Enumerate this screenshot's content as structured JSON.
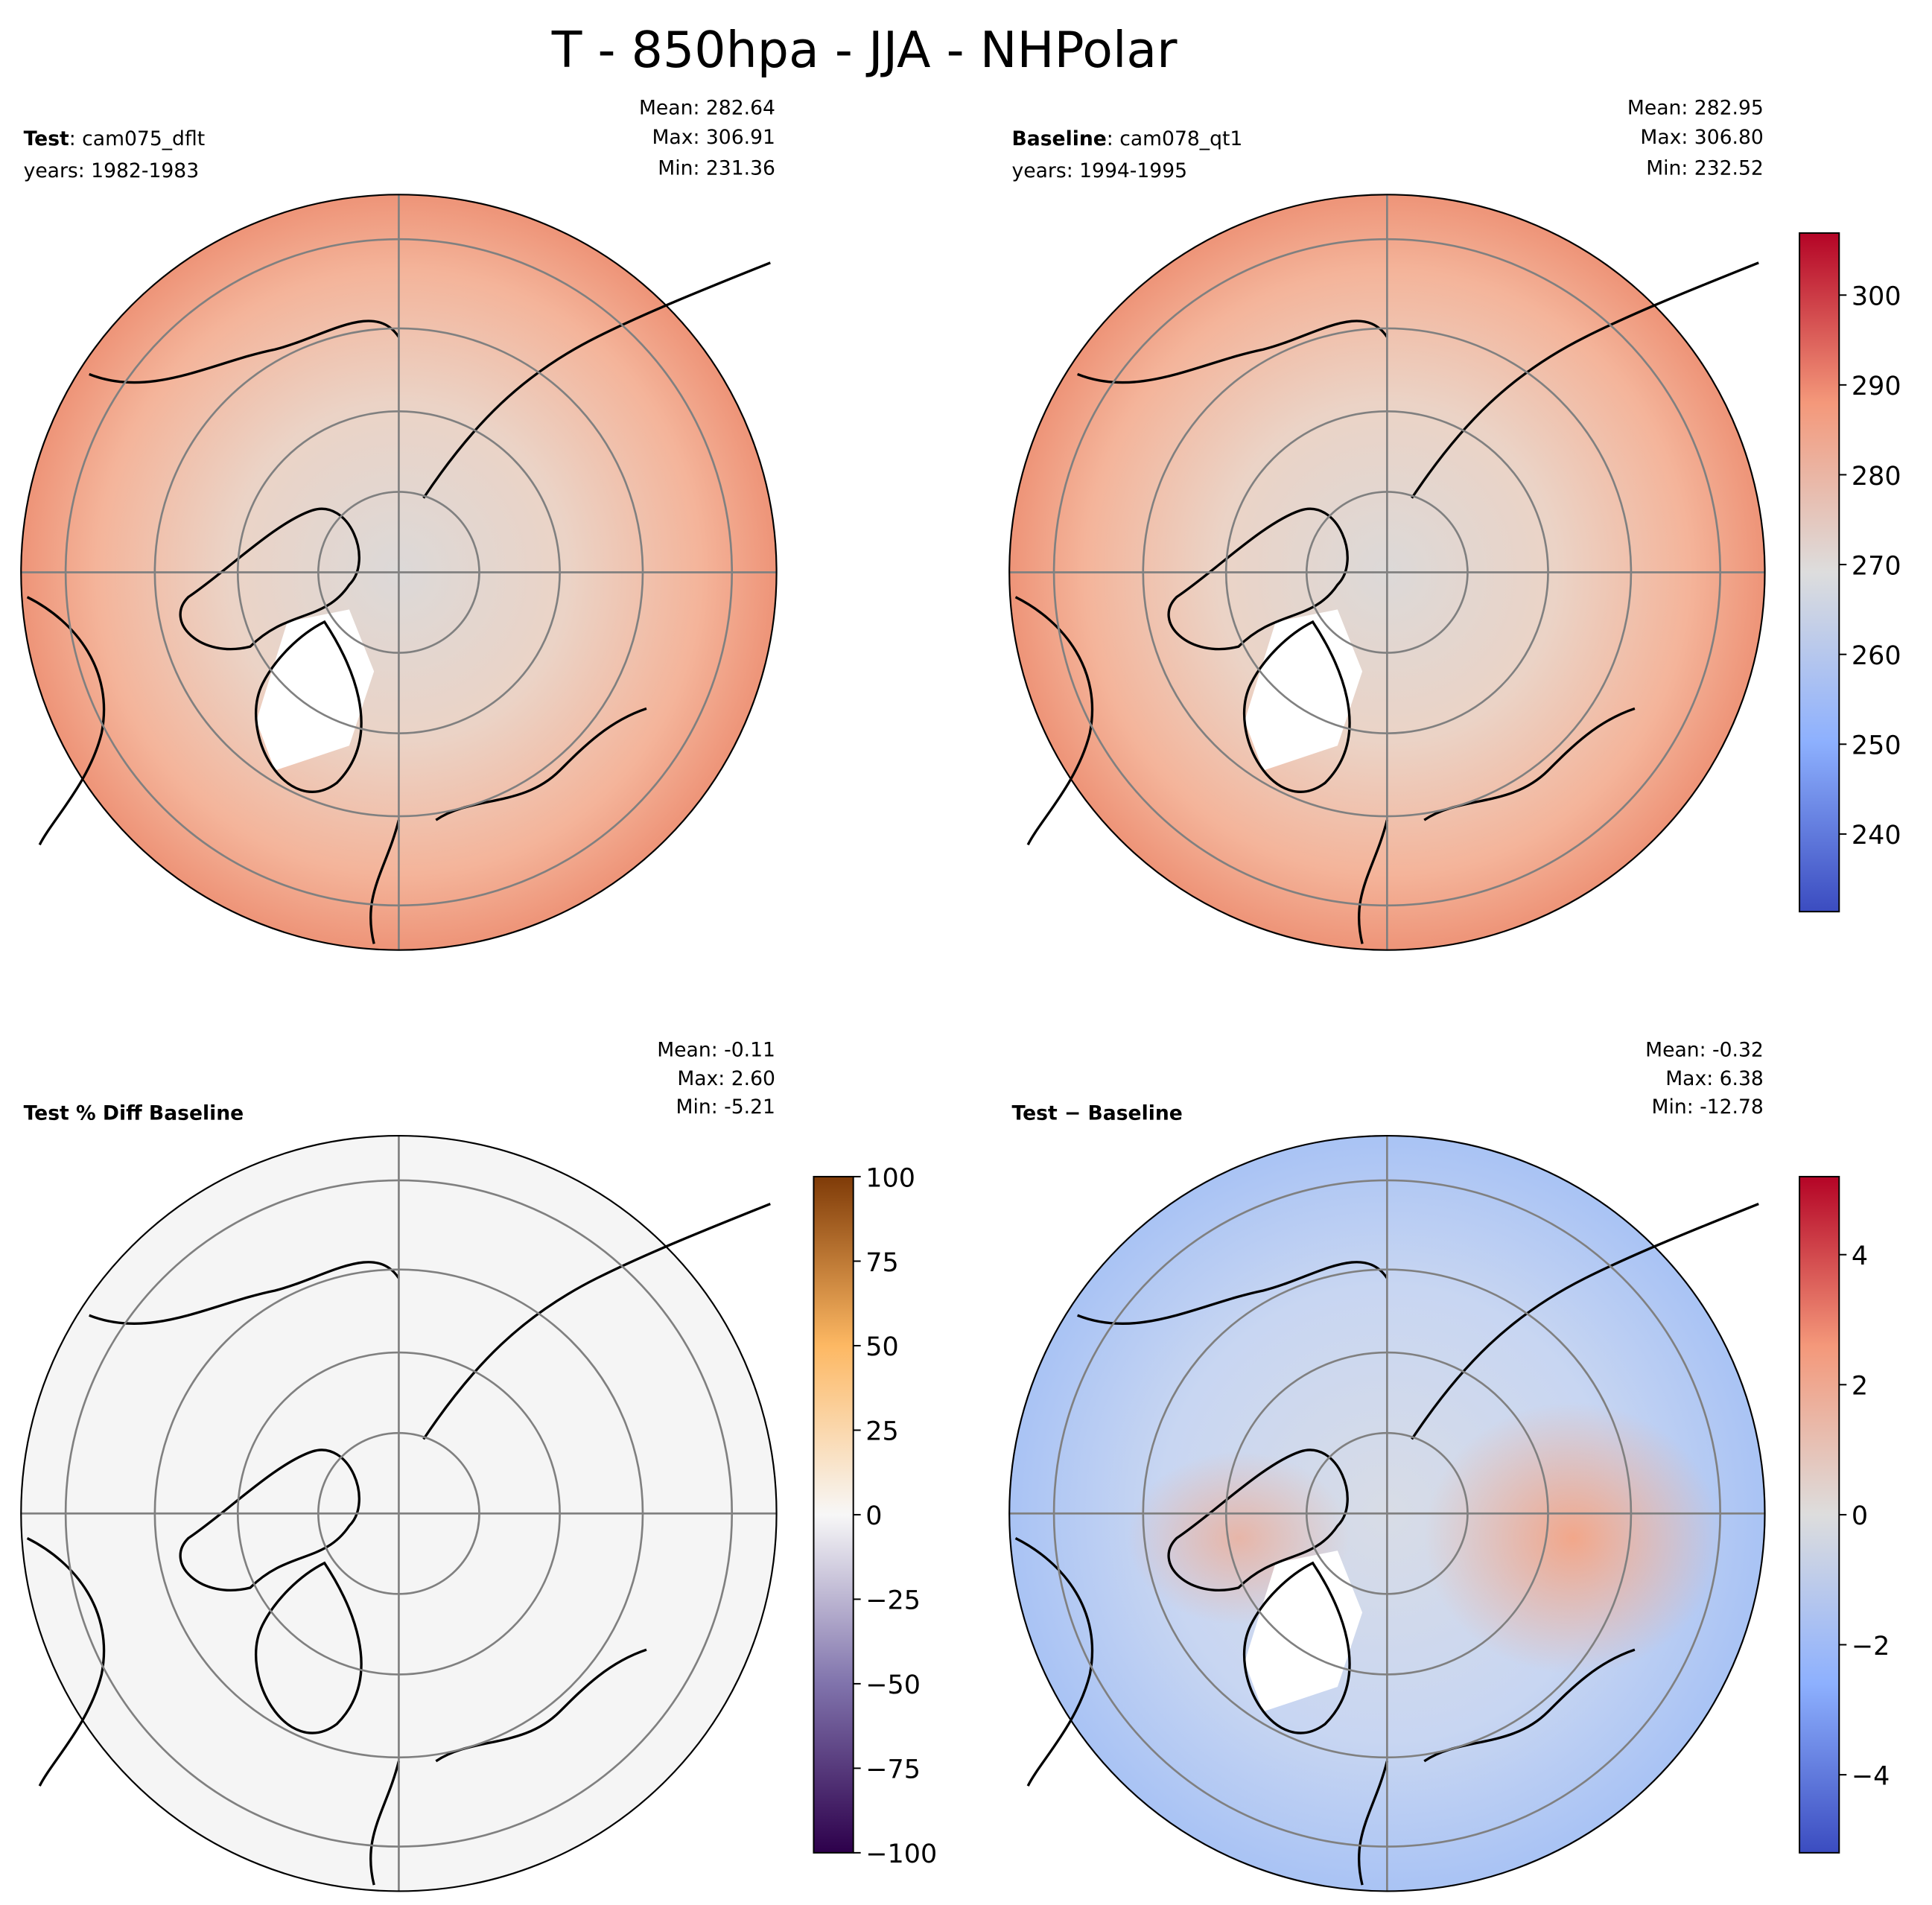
{
  "title": "T - 850hpa - JJA - NHPolar",
  "chart_data": [
    {
      "type": "heatmap",
      "projection": "north-polar-stereographic",
      "label_bold": "Test",
      "label_rest": ": cam075_dflt",
      "years": "years: 1982-1983",
      "stats": [
        "Mean: 282.64",
        "Max: 306.91",
        "Min: 231.36"
      ],
      "field": "test"
    },
    {
      "type": "heatmap",
      "projection": "north-polar-stereographic",
      "label_bold": "Baseline",
      "label_rest": ": cam078_qt1",
      "years": "years: 1994-1995",
      "stats": [
        "Mean: 282.95",
        "Max: 306.80",
        "Min: 232.52"
      ],
      "field": "baseline",
      "colorbar": {
        "cmap": "coolwarm",
        "range": [
          231.36,
          306.91
        ],
        "ticks": [
          240,
          250,
          260,
          270,
          280,
          290,
          300
        ],
        "tick_labels": [
          "240",
          "250",
          "260",
          "270",
          "280",
          "290",
          "300"
        ]
      }
    },
    {
      "type": "heatmap",
      "projection": "north-polar-stereographic",
      "label_bold": "Test % Diff Baseline",
      "label_rest": "",
      "years": "",
      "stats": [
        "Mean: -0.11",
        "Max:  2.60",
        "Min: -5.21"
      ],
      "field": "pctdiff",
      "colorbar": {
        "cmap": "PuOr_r",
        "range": [
          -100,
          100
        ],
        "ticks": [
          -100,
          -75,
          -50,
          -25,
          0,
          25,
          50,
          75,
          100
        ],
        "tick_labels": [
          "−100",
          "−75",
          "−50",
          "−25",
          "0",
          "25",
          "50",
          "75",
          "100"
        ]
      }
    },
    {
      "type": "heatmap",
      "projection": "north-polar-stereographic",
      "label_bold": "Test − Baseline",
      "label_rest": "",
      "years": "",
      "stats": [
        "Mean: -0.32",
        "Max:  6.38",
        "Min: -12.78"
      ],
      "field": "diff",
      "colorbar": {
        "cmap": "coolwarm",
        "range": [
          -5.2,
          5.2
        ],
        "ticks": [
          -4,
          -2,
          0,
          2,
          4
        ],
        "tick_labels": [
          "−4",
          "−2",
          "0",
          "2",
          "4"
        ]
      }
    }
  ],
  "colors": {
    "grid": "#808080",
    "coast": "#000000",
    "pct_fill": "#f5f5f5"
  }
}
